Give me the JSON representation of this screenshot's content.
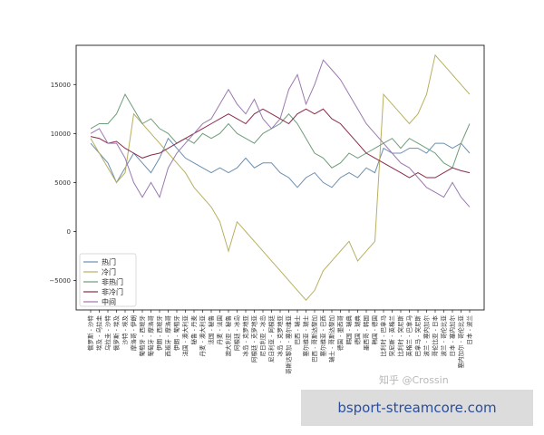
{
  "chart_data": {
    "type": "line",
    "title": "",
    "xlabel": "",
    "ylabel": "",
    "ylim": [
      -8000,
      19000
    ],
    "yticks": [
      -5000,
      0,
      5000,
      10000,
      15000
    ],
    "ytick_labels": [
      "−5000",
      "0",
      "5000",
      "10000",
      "15000"
    ],
    "grid": false,
    "legend_position": "lower-left",
    "categories": [
      "俄罗斯 - 沙特",
      "埃及 - 乌拉圭",
      "乌拉圭 - 沙特",
      "俄罗斯 - 埃及",
      "沙特 - 埃及",
      "摩洛哥 - 伊朗",
      "葡萄牙 - 西班牙",
      "葡萄牙 - 摩洛哥",
      "伊朗 - 西班牙",
      "西班牙 - 摩洛哥",
      "伊朗 - 葡萄牙",
      "法国 - 澳大利亚",
      "秘鲁 - 丹麦",
      "丹麦 - 澳大利亚",
      "法国 - 秘鲁",
      "丹麦 - 法国",
      "澳大利亚 - 秘鲁",
      "阿根廷 - 冰岛",
      "冰岛 - 克罗地亚",
      "阿根廷 - 克罗地亚",
      "尼日利亚 - 冰岛",
      "尼日利亚 - 阿根廷",
      "冰岛 - 克罗地亚",
      "哥斯达黎加 - 塞尔维亚",
      "巴西 - 瑞士",
      "塞尔维亚 - 瑞士",
      "巴西 - 哥斯达黎加",
      "塞尔维亚 - 巴西",
      "瑞士 - 哥斯达黎加",
      "德国 - 墨西哥",
      "韩国 - 瑞典",
      "德国 - 瑞典",
      "墨西哥 - 韩国",
      "韩国 - 德国",
      "比利时 - 巴拿马",
      "突尼斯 - 英格兰",
      "比利时 - 突尼斯",
      "英格兰 - 巴拿马",
      "巴拿马 - 突尼斯",
      "波兰 - 塞内加尔",
      "哥伦比亚 - 日本",
      "波兰 - 哥伦比亚",
      "日本 - 塞内加尔",
      "塞内加尔 - 哥伦比亚",
      "日本 - 波兰"
    ],
    "series": [
      {
        "name": "热门",
        "color": "#6b8fb0",
        "values": [
          9000,
          8000,
          7000,
          5000,
          6500,
          8000,
          7000,
          6000,
          7500,
          9500,
          8500,
          7500,
          7000,
          6500,
          6000,
          6500,
          6000,
          6500,
          7500,
          6500,
          7000,
          7000,
          6000,
          5500,
          4500,
          5500,
          6000,
          5000,
          4500,
          5500,
          6000,
          5500,
          6500,
          6000,
          8500,
          8000,
          8000,
          8500,
          8500,
          8000,
          9000,
          9000,
          8500,
          9000,
          8000
        ]
      },
      {
        "name": "冷门",
        "color": "#b8b060",
        "values": [
          9500,
          8000,
          6500,
          5000,
          6000,
          12000,
          11000,
          10000,
          9000,
          8000,
          7000,
          6000,
          4500,
          3500,
          2500,
          1000,
          -2000,
          1000,
          0,
          -1000,
          -2000,
          -3000,
          -4000,
          -5000,
          -6000,
          -7000,
          -6000,
          -4000,
          -3000,
          -2000,
          -1000,
          -3000,
          -2000,
          -1000,
          14000,
          13000,
          12000,
          11000,
          12000,
          14000,
          18000,
          17000,
          16000,
          15000,
          14000
        ]
      },
      {
        "name": "非热门",
        "color": "#6f9c7a",
        "values": [
          10500,
          11000,
          11000,
          12000,
          14000,
          12500,
          11000,
          11500,
          10500,
          10000,
          9000,
          9500,
          9000,
          10000,
          9500,
          10000,
          11000,
          10000,
          9500,
          9000,
          10000,
          10500,
          11000,
          12000,
          11000,
          9500,
          8000,
          7500,
          6500,
          7000,
          8000,
          7500,
          8000,
          8500,
          9000,
          9500,
          8500,
          9500,
          9000,
          8500,
          8000,
          7000,
          6500,
          9000,
          11000
        ]
      },
      {
        "name": "非冷门",
        "color": "#8a2a4a",
        "values": [
          9700,
          9500,
          9000,
          9200,
          8500,
          8000,
          7500,
          7800,
          8000,
          8500,
          9000,
          9500,
          10000,
          10500,
          11000,
          11500,
          12000,
          11500,
          11000,
          12000,
          12500,
          12000,
          11500,
          11000,
          12000,
          12500,
          12000,
          12500,
          11500,
          11000,
          10000,
          9000,
          8000,
          7500,
          7000,
          6500,
          6000,
          5500,
          6000,
          5500,
          5500,
          6000,
          6500,
          6200,
          6000
        ]
      },
      {
        "name": "中间",
        "color": "#9a7ab0",
        "values": [
          10000,
          10500,
          9000,
          9000,
          7500,
          5000,
          3500,
          5000,
          3500,
          6500,
          8000,
          9000,
          10000,
          11000,
          11500,
          13000,
          14500,
          13000,
          12000,
          13500,
          11500,
          10500,
          11500,
          14500,
          16000,
          13000,
          15000,
          17500,
          16500,
          15500,
          14000,
          12500,
          11000,
          10000,
          9000,
          8000,
          7000,
          6500,
          5500,
          4500,
          4000,
          3500,
          5000,
          3500,
          2500
        ]
      }
    ]
  },
  "watermark": "知乎 @Crossin",
  "banner": {
    "text": "bsport-streamcore.com"
  }
}
